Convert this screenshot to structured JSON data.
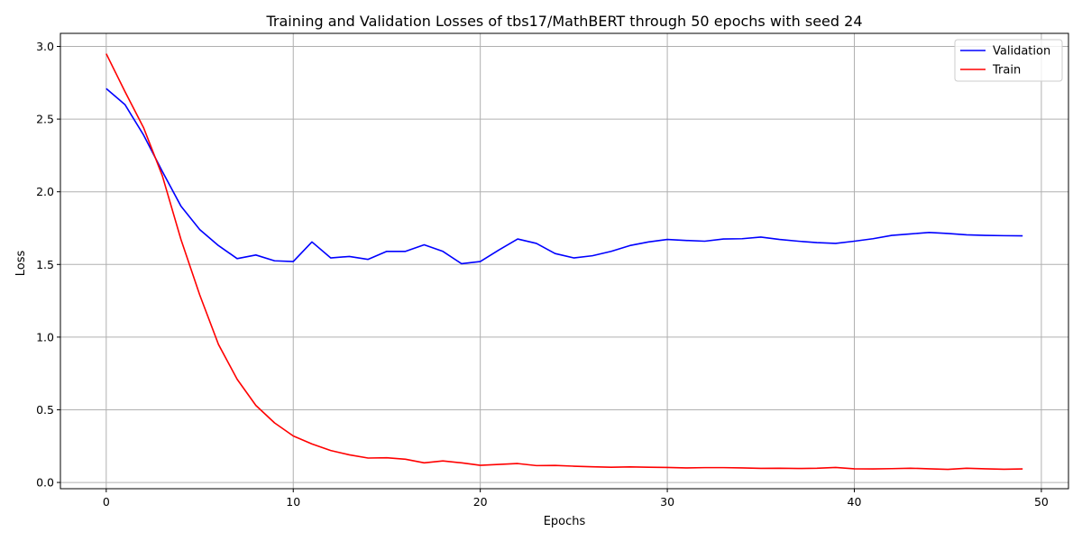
{
  "chart_data": {
    "type": "line",
    "title": "Training and Validation Losses of tbs17/MathBERT through 50 epochs with seed 24",
    "xlabel": "Epochs",
    "ylabel": "Loss",
    "xlim": [
      -2.45,
      51.45
    ],
    "ylim": [
      -0.043,
      3.09
    ],
    "xticks": [
      0,
      10,
      20,
      30,
      40,
      50
    ],
    "yticks": [
      0.0,
      0.5,
      1.0,
      1.5,
      2.0,
      2.5,
      3.0
    ],
    "xtick_labels": [
      "0",
      "10",
      "20",
      "30",
      "40",
      "50"
    ],
    "ytick_labels": [
      "0.0",
      "0.5",
      "1.0",
      "1.5",
      "2.0",
      "2.5",
      "3.0"
    ],
    "grid": true,
    "legend_position": "top-right",
    "x": [
      0,
      1,
      2,
      3,
      4,
      5,
      6,
      7,
      8,
      9,
      10,
      11,
      12,
      13,
      14,
      15,
      16,
      17,
      18,
      19,
      20,
      21,
      22,
      23,
      24,
      25,
      26,
      27,
      28,
      29,
      30,
      31,
      32,
      33,
      34,
      35,
      36,
      37,
      38,
      39,
      40,
      41,
      42,
      43,
      44,
      45,
      46,
      47,
      48,
      49
    ],
    "series": [
      {
        "name": "Validation",
        "color": "#0000ff",
        "values": [
          2.71,
          2.6,
          2.39,
          2.14,
          1.9,
          1.74,
          1.63,
          1.54,
          1.565,
          1.525,
          1.52,
          1.655,
          1.545,
          1.555,
          1.535,
          1.59,
          1.59,
          1.635,
          1.59,
          1.505,
          1.52,
          1.6,
          1.675,
          1.645,
          1.575,
          1.545,
          1.56,
          1.59,
          1.63,
          1.655,
          1.672,
          1.665,
          1.66,
          1.675,
          1.677,
          1.688,
          1.672,
          1.66,
          1.65,
          1.645,
          1.66,
          1.677,
          1.7,
          1.71,
          1.72,
          1.713,
          1.704,
          1.7,
          1.698,
          1.697
        ]
      },
      {
        "name": "Train",
        "color": "#ff0000",
        "values": [
          2.95,
          2.69,
          2.44,
          2.11,
          1.67,
          1.29,
          0.95,
          0.71,
          0.53,
          0.41,
          0.32,
          0.265,
          0.22,
          0.19,
          0.168,
          0.17,
          0.16,
          0.135,
          0.148,
          0.135,
          0.118,
          0.124,
          0.13,
          0.116,
          0.117,
          0.112,
          0.108,
          0.105,
          0.107,
          0.105,
          0.103,
          0.1,
          0.102,
          0.102,
          0.1,
          0.097,
          0.098,
          0.096,
          0.098,
          0.103,
          0.094,
          0.093,
          0.095,
          0.098,
          0.094,
          0.09,
          0.098,
          0.094,
          0.091,
          0.093
        ]
      }
    ]
  }
}
